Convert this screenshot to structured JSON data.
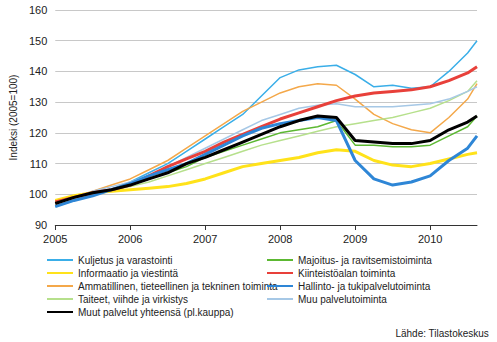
{
  "chart_data": {
    "type": "line",
    "y_label": "Indeksi (2005=100)",
    "source": "Lähde: Tilastokeskus",
    "x": [
      2005,
      2005.25,
      2005.5,
      2005.75,
      2006,
      2006.25,
      2006.5,
      2006.75,
      2007,
      2007.25,
      2007.5,
      2007.75,
      2008,
      2008.25,
      2008.5,
      2008.75,
      2009,
      2009.25,
      2009.5,
      2009.75,
      2010,
      2010.25,
      2010.5,
      2010.625
    ],
    "xlim": [
      2005,
      2010.625
    ],
    "xticks": [
      2005,
      2006,
      2007,
      2008,
      2009,
      2010
    ],
    "ylim": [
      90,
      160
    ],
    "yticks": [
      90,
      100,
      110,
      120,
      130,
      140,
      150,
      160
    ],
    "grid": true,
    "legend": "bottom",
    "series": [
      {
        "name": "Kuljetus ja varastointi",
        "color": "#3aaee8",
        "line_style": "thin",
        "values": [
          96,
          98,
          99.5,
          101.5,
          104,
          107,
          110,
          114,
          118,
          122,
          126,
          132,
          138,
          140.5,
          141.5,
          142,
          139,
          135,
          135.5,
          134.5,
          135,
          140,
          146,
          150
        ]
      },
      {
        "name": "Majoitus- ja ravitsemistoiminta",
        "color": "#5cb832",
        "line_style": "thin",
        "values": [
          97,
          99,
          100.5,
          101.5,
          103,
          105,
          107,
          109,
          112,
          114,
          116,
          118,
          120,
          121,
          122,
          124,
          116,
          116,
          115.5,
          115.5,
          116,
          119,
          122,
          125.5
        ]
      },
      {
        "name": "Informaatio ja viestintä",
        "color": "#ffe21a",
        "line_style": "thick",
        "values": [
          98,
          99.5,
          100.5,
          101,
          101.5,
          102,
          102.5,
          103.5,
          105,
          107,
          109,
          110,
          111,
          112,
          113.5,
          114.5,
          114,
          111,
          109.5,
          109,
          110,
          111.5,
          113,
          113.5
        ]
      },
      {
        "name": "Kiinteistöalan toiminta",
        "color": "#e8403a",
        "line_style": "thick",
        "values": [
          97.5,
          99,
          100.5,
          101.5,
          103,
          106,
          109,
          111.5,
          114,
          117,
          119.5,
          122,
          124.5,
          126.5,
          128.5,
          130.5,
          132,
          133,
          133.5,
          134,
          135,
          137,
          139.5,
          141.5
        ]
      },
      {
        "name": "Ammatillinen, tieteellinen ja tekninen toiminta",
        "color": "#f4a84a",
        "line_style": "thin",
        "values": [
          97,
          99,
          101,
          103,
          105,
          108,
          111,
          115,
          119,
          123,
          127,
          130,
          133,
          135,
          136,
          135.5,
          131,
          126,
          123,
          121,
          120,
          125,
          131,
          136
        ]
      },
      {
        "name": "Hallinto- ja tukipalvelutoiminta",
        "color": "#2e86d6",
        "line_style": "thick",
        "values": [
          96,
          98,
          99.5,
          101.5,
          103.5,
          106,
          108,
          110,
          113,
          116,
          119,
          121.5,
          123,
          124,
          125,
          124,
          111,
          105,
          103,
          104,
          106,
          111,
          115,
          119
        ]
      },
      {
        "name": "Taiteet, viihde ja virkistys",
        "color": "#b6e08c",
        "line_style": "thin",
        "values": [
          98,
          99.5,
          100.5,
          101.5,
          102.5,
          104,
          106,
          108,
          110,
          112,
          114,
          116,
          117.5,
          119,
          120.5,
          122,
          123,
          124,
          125,
          126.5,
          128,
          130.5,
          133.5,
          137
        ]
      },
      {
        "name": "Muu palvelutoiminta",
        "color": "#a6c8e6",
        "line_style": "thin",
        "values": [
          97,
          99,
          101,
          102.5,
          104,
          106,
          109,
          112,
          115,
          118,
          121,
          124,
          126,
          128,
          129,
          129.5,
          128.5,
          128.5,
          128.5,
          129,
          129.5,
          131,
          133.5,
          135
        ]
      },
      {
        "name": "Muut palvelut yhteensä (pl.kauppa)",
        "color": "#000000",
        "line_style": "thick",
        "values": [
          97,
          99,
          100.5,
          101.5,
          103,
          105,
          107,
          110,
          112,
          114.5,
          117,
          119.5,
          122,
          124,
          125.5,
          125,
          117.5,
          117,
          116.5,
          116.5,
          117.5,
          121,
          123.5,
          125.5
        ]
      }
    ]
  }
}
